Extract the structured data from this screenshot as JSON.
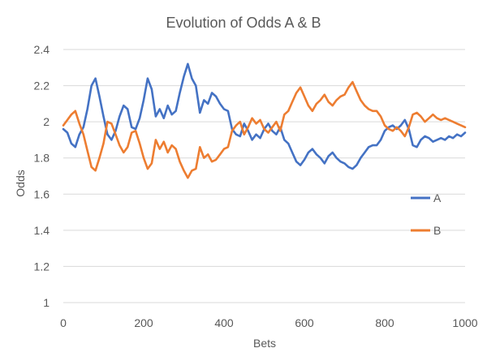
{
  "chart_data": {
    "type": "line",
    "title": "Evolution of Odds A & B",
    "xlabel": "Bets",
    "ylabel": "Odds",
    "xlim": [
      0,
      1000
    ],
    "ylim": [
      1,
      2.4
    ],
    "x_ticks": [
      "0",
      "200",
      "400",
      "600",
      "800",
      "1000"
    ],
    "y_ticks": [
      "1",
      "1.2",
      "1.4",
      "1.6",
      "1.8",
      "2",
      "2.2",
      "2.4"
    ],
    "grid": true,
    "legend_position": "right",
    "x": [
      0,
      10,
      20,
      30,
      40,
      50,
      60,
      70,
      80,
      90,
      100,
      110,
      120,
      130,
      140,
      150,
      160,
      170,
      180,
      190,
      200,
      210,
      220,
      230,
      240,
      250,
      260,
      270,
      280,
      290,
      300,
      310,
      320,
      330,
      340,
      350,
      360,
      370,
      380,
      390,
      400,
      410,
      420,
      430,
      440,
      450,
      460,
      470,
      480,
      490,
      500,
      510,
      520,
      530,
      540,
      550,
      560,
      570,
      580,
      590,
      600,
      610,
      620,
      630,
      640,
      650,
      660,
      670,
      680,
      690,
      700,
      710,
      720,
      730,
      740,
      750,
      760,
      770,
      780,
      790,
      800,
      810,
      820,
      830,
      840,
      850,
      860,
      870,
      880,
      890,
      900,
      910,
      920,
      930,
      940,
      950,
      960,
      970,
      980,
      990,
      1000
    ],
    "series": [
      {
        "name": "A",
        "color": "#4472c4",
        "values": [
          1.96,
          1.94,
          1.88,
          1.86,
          1.93,
          1.97,
          2.07,
          2.2,
          2.24,
          2.14,
          2.03,
          1.93,
          1.9,
          1.95,
          2.03,
          2.09,
          2.07,
          1.97,
          1.96,
          2.02,
          2.12,
          2.24,
          2.18,
          2.03,
          2.07,
          2.02,
          2.09,
          2.04,
          2.06,
          2.16,
          2.25,
          2.32,
          2.24,
          2.2,
          2.05,
          2.12,
          2.1,
          2.16,
          2.14,
          2.1,
          2.07,
          2.06,
          1.96,
          1.93,
          1.92,
          1.99,
          1.95,
          1.9,
          1.93,
          1.91,
          1.96,
          1.99,
          1.95,
          1.93,
          1.97,
          1.9,
          1.88,
          1.83,
          1.78,
          1.76,
          1.79,
          1.83,
          1.85,
          1.82,
          1.8,
          1.77,
          1.81,
          1.83,
          1.8,
          1.78,
          1.77,
          1.75,
          1.74,
          1.76,
          1.8,
          1.83,
          1.86,
          1.87,
          1.87,
          1.9,
          1.95,
          1.97,
          1.98,
          1.96,
          1.98,
          2.01,
          1.96,
          1.87,
          1.86,
          1.9,
          1.92,
          1.91,
          1.89,
          1.9,
          1.91,
          1.9,
          1.92,
          1.91,
          1.93,
          1.92,
          1.94
        ]
      },
      {
        "name": "B",
        "color": "#ed7d31",
        "values": [
          1.98,
          2.01,
          2.04,
          2.06,
          1.99,
          1.93,
          1.84,
          1.75,
          1.73,
          1.8,
          1.88,
          2.0,
          1.99,
          1.93,
          1.87,
          1.83,
          1.86,
          1.94,
          1.95,
          1.88,
          1.8,
          1.74,
          1.77,
          1.9,
          1.85,
          1.89,
          1.83,
          1.87,
          1.85,
          1.78,
          1.73,
          1.69,
          1.73,
          1.74,
          1.86,
          1.8,
          1.82,
          1.78,
          1.79,
          1.82,
          1.85,
          1.86,
          1.95,
          1.98,
          2.0,
          1.93,
          1.97,
          2.02,
          1.99,
          2.01,
          1.96,
          1.94,
          1.97,
          2.0,
          1.95,
          2.04,
          2.06,
          2.11,
          2.16,
          2.19,
          2.14,
          2.09,
          2.06,
          2.1,
          2.12,
          2.15,
          2.11,
          2.09,
          2.12,
          2.14,
          2.15,
          2.19,
          2.22,
          2.17,
          2.12,
          2.09,
          2.07,
          2.06,
          2.06,
          2.03,
          1.98,
          1.96,
          1.95,
          1.97,
          1.95,
          1.92,
          1.97,
          2.04,
          2.05,
          2.03,
          2.0,
          2.02,
          2.04,
          2.02,
          2.01,
          2.02,
          2.01,
          2.0,
          1.99,
          1.98,
          1.97
        ]
      }
    ]
  }
}
